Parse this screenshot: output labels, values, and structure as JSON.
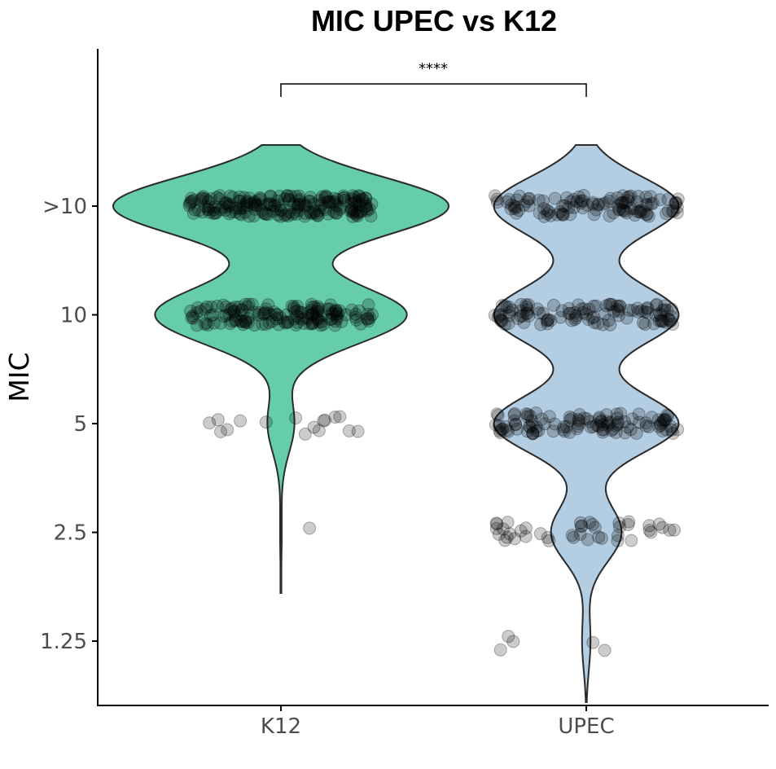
{
  "chart_data": {
    "type": "violin",
    "title": "MIC UPEC vs K12",
    "xlabel": "",
    "ylabel": "MIC",
    "categories": [
      "K12",
      "UPEC"
    ],
    "y_levels": [
      "1.25",
      "2.5",
      "5",
      "10",
      ">10"
    ],
    "grid": false,
    "legend": "none",
    "series": [
      {
        "category": "K12",
        "color": "#66cdaa",
        "counts": {
          "1.25": 0,
          "2.5": 1,
          "5": 16,
          "10": 150,
          ">10": 200
        }
      },
      {
        "category": "UPEC",
        "color": "#b3cde3",
        "counts": {
          "1.25": 5,
          "2.5": 42,
          "5": 110,
          "10": 110,
          ">10": 110
        }
      }
    ],
    "comparison": {
      "from": "K12",
      "to": "UPEC",
      "label": "****"
    }
  }
}
